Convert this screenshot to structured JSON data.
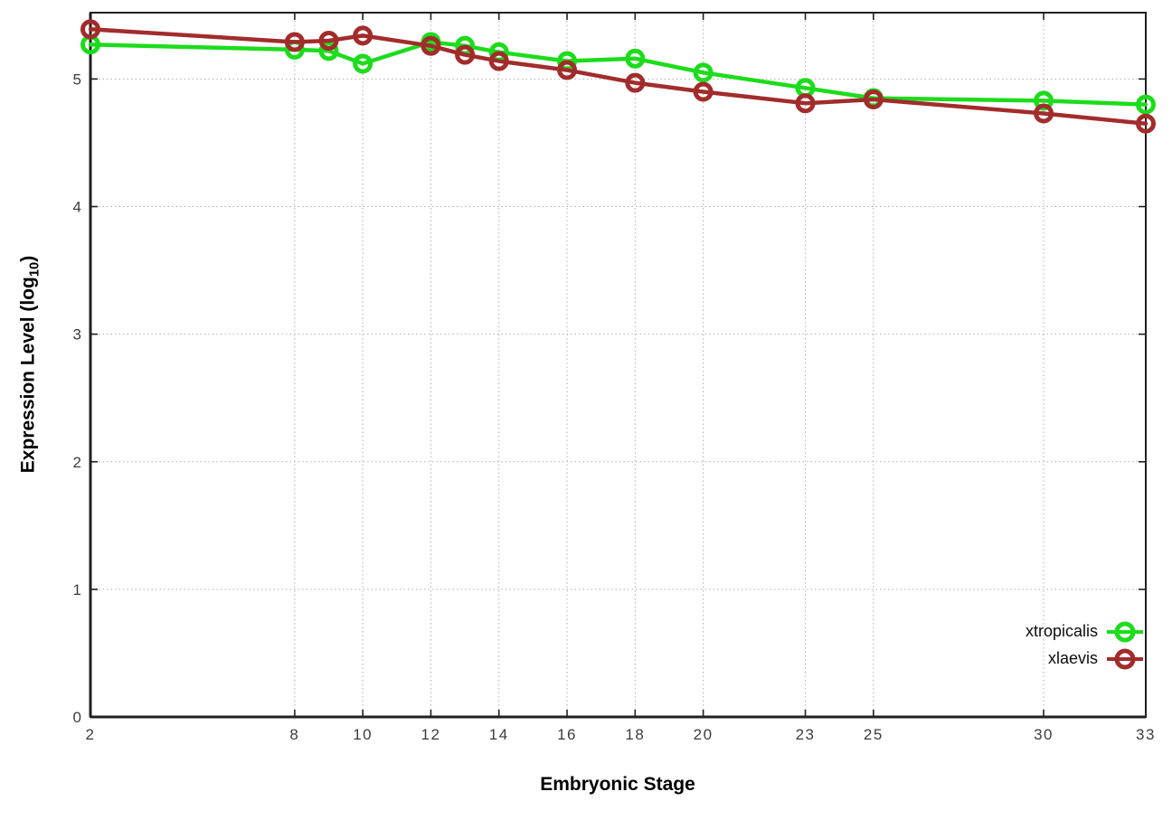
{
  "chart_data": {
    "type": "line",
    "title": "",
    "xlabel": "Embryonic Stage",
    "ylabel": {
      "pre": "Expression Level (log",
      "sub": "10",
      "post": ")"
    },
    "x": [
      2,
      8,
      9,
      10,
      12,
      13,
      14,
      16,
      18,
      20,
      23,
      25,
      30,
      33
    ],
    "series": [
      {
        "name": "xtropicalis",
        "color": "#1cdc1c",
        "values": [
          5.27,
          5.23,
          5.22,
          5.12,
          5.29,
          5.26,
          5.21,
          5.14,
          5.16,
          5.05,
          4.93,
          4.85,
          4.83,
          4.8
        ]
      },
      {
        "name": "xlaevis",
        "color": "#a22c2c",
        "values": [
          5.39,
          5.29,
          5.3,
          5.34,
          5.26,
          5.19,
          5.14,
          5.07,
          4.97,
          4.9,
          4.81,
          4.84,
          4.73,
          4.65
        ]
      }
    ],
    "xlim": [
      2,
      33
    ],
    "ylim": [
      0,
      5.52
    ],
    "x_tick_values": [
      2,
      8,
      10,
      12,
      14,
      16,
      18,
      20,
      23,
      25,
      30,
      33
    ],
    "x_tick_labels": [
      "2",
      "8",
      "10",
      "12",
      "14",
      "16",
      "18",
      "20",
      "23",
      "25",
      "30",
      "33"
    ],
    "y_tick_values": [
      0,
      1,
      2,
      3,
      4,
      5
    ],
    "y_tick_labels": [
      "0",
      "1",
      "2",
      "3",
      "4",
      "5"
    ],
    "grid": true,
    "legend_position": "inside-bottom-right",
    "appearance": {
      "background": "#ffffff",
      "grid_color": "#b0b0b0",
      "axis_color": "#202020",
      "tick_label_color": "#3c3c3c",
      "line_width": 4.5,
      "marker": "open-circle",
      "marker_radius": 8.5,
      "marker_stroke": 5
    }
  }
}
